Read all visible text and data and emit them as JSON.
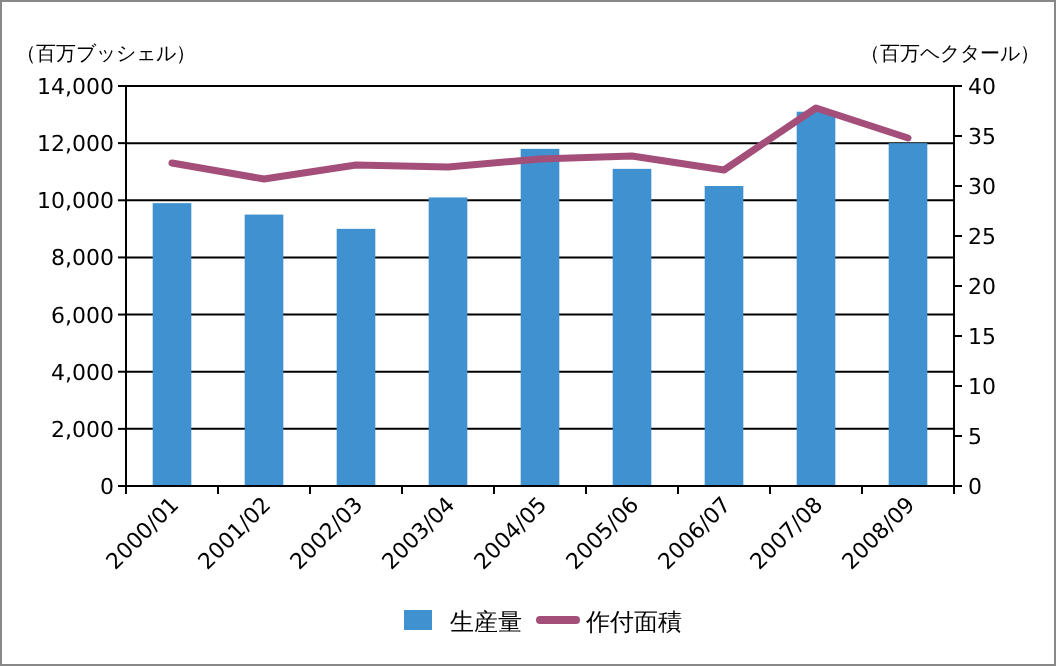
{
  "chart_data": {
    "type": "bar",
    "ylabel": "（百万ブッシェル）",
    "y2label": "（百万ヘクタール）",
    "categories": [
      "2000/01",
      "2001/02",
      "2002/03",
      "2003/04",
      "2004/05",
      "2005/06",
      "2006/07",
      "2007/08",
      "2008/09"
    ],
    "series": [
      {
        "name": "生産量",
        "color": "#4091cf",
        "values": [
          9900,
          9500,
          9000,
          10100,
          11800,
          11100,
          10500,
          13100,
          12000
        ]
      },
      {
        "name": "作付面積",
        "type": "line",
        "axis": "y2",
        "color": "#a44f7a",
        "values": [
          32.3,
          30.7,
          32.1,
          31.9,
          32.7,
          33.0,
          31.6,
          37.8,
          34.8
        ]
      }
    ],
    "ylim": [
      0,
      14000
    ],
    "yticks": [
      {
        "value": 0,
        "label": "0"
      },
      {
        "value": 2000,
        "label": "2,000"
      },
      {
        "value": 4000,
        "label": "4,000"
      },
      {
        "value": 6000,
        "label": "6,000"
      },
      {
        "value": 8000,
        "label": "8,000"
      },
      {
        "value": 10000,
        "label": "10,000"
      },
      {
        "value": 12000,
        "label": "12,000"
      },
      {
        "value": 14000,
        "label": "14,000"
      }
    ],
    "y2lim": [
      0,
      40
    ],
    "y2ticks": [
      0,
      5,
      10,
      15,
      20,
      25,
      30,
      35,
      40
    ],
    "grid": "y",
    "legend": "bottom",
    "marker": "none",
    "line_style": "solid"
  }
}
